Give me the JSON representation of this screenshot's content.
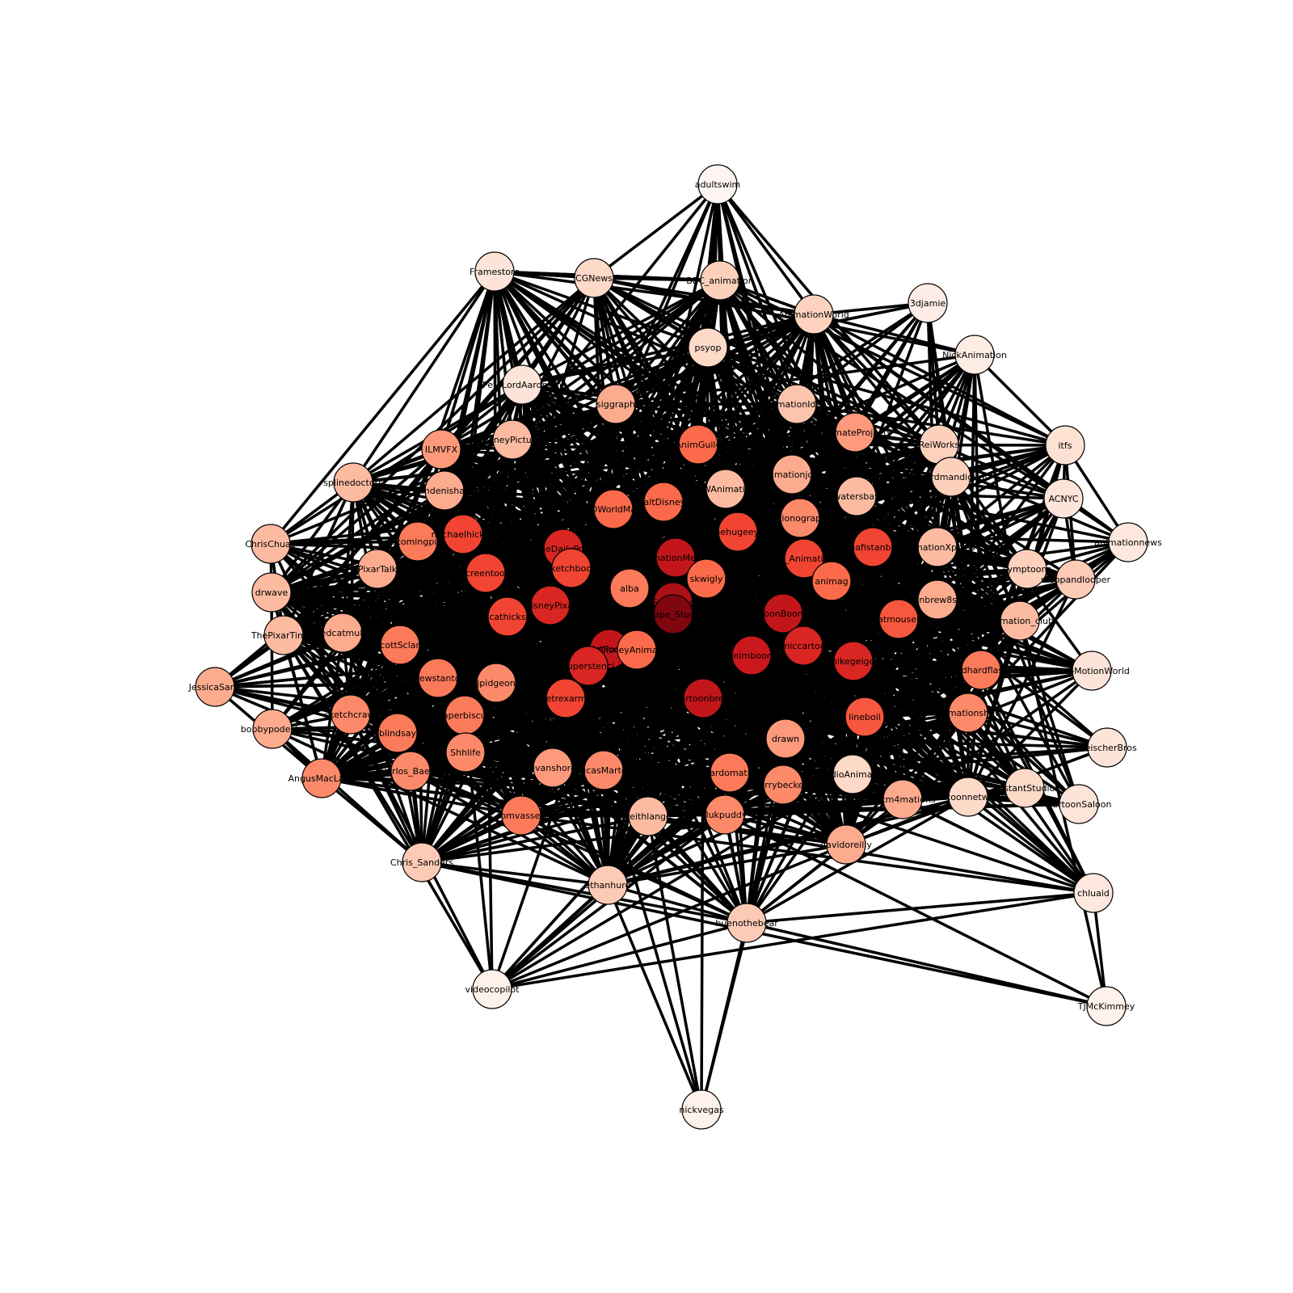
{
  "graph": {
    "directed": false,
    "node_color_scale": [
      "#fff5f0",
      "#fde0d2",
      "#fcbba1",
      "#fc9272",
      "#fb6a4a",
      "#ef3b2c",
      "#cb181d",
      "#a50f15",
      "#67000d"
    ],
    "nodes": [
      {
        "label": "adultswim",
        "shade": 0.0
      },
      {
        "label": "Framestore",
        "shade": 0.1
      },
      {
        "label": "CGNews",
        "shade": 0.15
      },
      {
        "label": "BBC_animation",
        "shade": 0.18
      },
      {
        "label": "AnimationWorld",
        "shade": 0.17
      },
      {
        "label": "3djamie",
        "shade": 0.05
      },
      {
        "label": "NickAnimation",
        "shade": 0.05
      },
      {
        "label": "psyop",
        "shade": 0.15
      },
      {
        "label": "PeteLordAardman",
        "shade": 0.1
      },
      {
        "label": "siggraph",
        "shade": 0.3
      },
      {
        "label": "AnimationIdeas",
        "shade": 0.22
      },
      {
        "label": "UltimateProjects",
        "shade": 0.35
      },
      {
        "label": "ReiWorks",
        "shade": 0.18
      },
      {
        "label": "itfs",
        "shade": 0.12
      },
      {
        "label": "ILMVFX",
        "shade": 0.35
      },
      {
        "label": "DisneyPictures",
        "shade": 0.25
      },
      {
        "label": "AnimGuild",
        "shade": 0.5
      },
      {
        "label": "animationjobs",
        "shade": 0.3
      },
      {
        "label": "weirdmandigital",
        "shade": 0.18
      },
      {
        "label": "ACNYC",
        "shade": 0.1
      },
      {
        "label": "splinedoctors",
        "shade": 0.25
      },
      {
        "label": "andenishan",
        "shade": 0.3
      },
      {
        "label": "DWAnimation",
        "shade": 0.25
      },
      {
        "label": "watersbay",
        "shade": 0.25
      },
      {
        "label": "animationnews",
        "shade": 0.08
      },
      {
        "label": "ChrisChua0",
        "shade": 0.25
      },
      {
        "label": "upcomingpixar",
        "shade": 0.45
      },
      {
        "label": "michaelhickey",
        "shade": 0.6
      },
      {
        "label": "3DWorldMag",
        "shade": 0.5
      },
      {
        "label": "WaltDisneyA",
        "shade": 0.5
      },
      {
        "label": "thehugeeye",
        "shade": 0.6
      },
      {
        "label": "motionographer",
        "shade": 0.4
      },
      {
        "label": "mafistanbul",
        "shade": 0.6
      },
      {
        "label": "AnimationXpress",
        "shade": 0.25
      },
      {
        "label": "PixarTalk",
        "shade": 0.3
      },
      {
        "label": "TheDailyPost",
        "shade": 0.7
      },
      {
        "label": "AnimationMentor",
        "shade": 0.78
      },
      {
        "label": "SF_Animation",
        "shade": 0.6
      },
      {
        "label": "symptoons",
        "shade": 0.18
      },
      {
        "label": "drwave",
        "shade": 0.25
      },
      {
        "label": "screentoon",
        "shade": 0.6
      },
      {
        "label": "sketchbook",
        "shade": 0.6
      },
      {
        "label": "skwigly",
        "shade": 0.5
      },
      {
        "label": "animag",
        "shade": 0.5
      },
      {
        "label": "stoopandlooper",
        "shade": 0.2
      },
      {
        "label": "alba",
        "shade": 0.45
      },
      {
        "label": "Cartoonbrew8stopmo",
        "shade": 0.3
      },
      {
        "label": "ThePixarTimes",
        "shade": 0.25
      },
      {
        "label": "cathicks",
        "shade": 0.6
      },
      {
        "label": "DisneyPixar",
        "shade": 0.7
      },
      {
        "label": "Soukseas",
        "shade": 0.85
      },
      {
        "label": "Escape_Studios",
        "shade": 0.95
      },
      {
        "label": "ToonBoom",
        "shade": 0.78
      },
      {
        "label": "catmousele",
        "shade": 0.55
      },
      {
        "label": "animation_club",
        "shade": 0.25
      },
      {
        "label": "edcatmull",
        "shade": 0.3
      },
      {
        "label": "AnimPodcast",
        "shade": 0.78
      },
      {
        "label": "DisneyAnimation",
        "shade": 0.5
      },
      {
        "label": "comiccartoons",
        "shade": 0.7
      },
      {
        "label": "scottSclark",
        "shade": 0.45
      },
      {
        "label": "animboom",
        "shade": 0.75
      },
      {
        "label": "mikegeiger",
        "shade": 0.7
      },
      {
        "label": "JessicaSanT",
        "shade": 0.3
      },
      {
        "label": "superstenci",
        "shade": 0.7
      },
      {
        "label": "drewstanton",
        "shade": 0.45
      },
      {
        "label": "jpidgeon",
        "shade": 0.4
      },
      {
        "label": "oldhardflash",
        "shade": 0.45
      },
      {
        "label": "StopMotionWorld",
        "shade": 0.1
      },
      {
        "label": "petrexarms",
        "shade": 0.6
      },
      {
        "label": "cartoonbrew",
        "shade": 0.78
      },
      {
        "label": "animationshow",
        "shade": 0.4
      },
      {
        "label": "sketchcrawl",
        "shade": 0.4
      },
      {
        "label": "paperbiscuit",
        "shade": 0.45
      },
      {
        "label": "lineboil",
        "shade": 0.55
      },
      {
        "label": "bobbypodesta",
        "shade": 0.3
      },
      {
        "label": "Shhlife",
        "shade": 0.4
      },
      {
        "label": "blindsay",
        "shade": 0.45
      },
      {
        "label": "drawn",
        "shade": 0.35
      },
      {
        "label": "FleischerBros",
        "shade": 0.1
      },
      {
        "label": "AngusMacLane",
        "shade": 0.4
      },
      {
        "label": "Carlos_Baena",
        "shade": 0.4
      },
      {
        "label": "evanshore",
        "shade": 0.35
      },
      {
        "label": "LucasMartell",
        "shade": 0.4
      },
      {
        "label": "cardomatic",
        "shade": 0.45
      },
      {
        "label": "terrybeckett",
        "shade": 0.4
      },
      {
        "label": "StudioAnimation",
        "shade": 0.15
      },
      {
        "label": "Hatm4mations",
        "shade": 0.3
      },
      {
        "label": "cartoonnetwork",
        "shade": 0.15
      },
      {
        "label": "DistantStudio",
        "shade": 0.15
      },
      {
        "label": "CartoonSaloon",
        "shade": 0.1
      },
      {
        "label": "tomvassey",
        "shade": 0.45
      },
      {
        "label": "keithlango",
        "shade": 0.25
      },
      {
        "label": "flukpuddy",
        "shade": 0.4
      },
      {
        "label": "davidoreilly",
        "shade": 0.3
      },
      {
        "label": "Chris_Sanders",
        "shade": 0.2
      },
      {
        "label": "ethanhurd",
        "shade": 0.2
      },
      {
        "label": "chluaid",
        "shade": 0.08
      },
      {
        "label": "buenothebear",
        "shade": 0.2
      },
      {
        "label": "videocopilot",
        "shade": 0.02
      },
      {
        "label": "TJMcKimmey",
        "shade": 0.02
      },
      {
        "label": "nickvegas",
        "shade": 0.02
      }
    ],
    "sample_edges": [
      [
        0,
        7
      ],
      [
        0,
        4
      ],
      [
        0,
        9
      ],
      [
        0,
        10
      ],
      [
        0,
        22
      ],
      [
        0,
        16
      ],
      [
        1,
        2
      ],
      [
        1,
        8
      ],
      [
        1,
        15
      ],
      [
        1,
        14
      ],
      [
        1,
        9
      ],
      [
        1,
        3
      ],
      [
        2,
        3
      ],
      [
        2,
        9
      ],
      [
        2,
        7
      ],
      [
        2,
        16
      ],
      [
        2,
        22
      ],
      [
        2,
        28
      ],
      [
        3,
        4
      ],
      [
        3,
        10
      ],
      [
        3,
        16
      ],
      [
        3,
        29
      ],
      [
        3,
        30
      ],
      [
        4,
        5
      ],
      [
        4,
        10
      ],
      [
        4,
        11
      ],
      [
        4,
        17
      ],
      [
        4,
        13
      ],
      [
        5,
        12
      ],
      [
        5,
        18
      ],
      [
        5,
        11
      ],
      [
        5,
        23
      ],
      [
        6,
        12
      ],
      [
        6,
        13
      ],
      [
        6,
        18
      ],
      [
        6,
        23
      ],
      [
        6,
        32
      ],
      [
        7,
        9
      ],
      [
        7,
        16
      ],
      [
        7,
        28
      ],
      [
        7,
        29
      ],
      [
        8,
        15
      ],
      [
        8,
        9
      ],
      [
        8,
        26
      ],
      [
        8,
        94
      ],
      [
        9,
        16
      ],
      [
        9,
        28
      ],
      [
        9,
        29
      ],
      [
        9,
        40
      ],
      [
        10,
        17
      ],
      [
        10,
        22
      ],
      [
        10,
        31
      ],
      [
        11,
        17
      ],
      [
        11,
        23
      ],
      [
        11,
        32
      ],
      [
        12,
        18
      ],
      [
        12,
        33
      ],
      [
        13,
        19
      ],
      [
        13,
        24
      ],
      [
        13,
        44
      ],
      [
        13,
        66
      ],
      [
        14,
        20
      ],
      [
        14,
        21
      ],
      [
        14,
        26
      ],
      [
        14,
        27
      ],
      [
        15,
        21
      ],
      [
        15,
        27
      ],
      [
        15,
        35
      ],
      [
        16,
        22
      ],
      [
        16,
        30
      ],
      [
        16,
        36
      ],
      [
        17,
        31
      ],
      [
        17,
        37
      ],
      [
        18,
        33
      ],
      [
        18,
        38
      ],
      [
        19,
        24
      ],
      [
        19,
        38
      ],
      [
        19,
        44
      ],
      [
        19,
        53
      ],
      [
        20,
        25
      ],
      [
        20,
        34
      ],
      [
        20,
        39
      ],
      [
        20,
        47
      ],
      [
        21,
        26
      ],
      [
        21,
        34
      ],
      [
        22,
        30
      ],
      [
        22,
        36
      ],
      [
        23,
        32
      ],
      [
        23,
        33
      ],
      [
        24,
        38
      ],
      [
        24,
        44
      ],
      [
        24,
        66
      ],
      [
        24,
        77
      ],
      [
        25,
        39
      ],
      [
        25,
        47
      ],
      [
        25,
        61
      ],
      [
        25,
        26
      ],
      [
        26,
        34
      ],
      [
        26,
        40
      ],
      [
        27,
        40
      ],
      [
        27,
        41
      ],
      [
        28,
        41
      ],
      [
        28,
        45
      ],
      [
        29,
        36
      ],
      [
        29,
        42
      ],
      [
        30,
        42
      ],
      [
        31,
        37
      ],
      [
        31,
        43
      ],
      [
        32,
        43
      ],
      [
        32,
        52
      ],
      [
        33,
        46
      ],
      [
        34,
        47
      ],
      [
        35,
        41
      ],
      [
        35,
        49
      ],
      [
        36,
        42
      ],
      [
        36,
        50
      ],
      [
        37,
        43
      ],
      [
        37,
        52
      ],
      [
        38,
        44
      ],
      [
        38,
        53
      ],
      [
        39,
        47
      ],
      [
        39,
        61
      ],
      [
        40,
        48
      ],
      [
        41,
        49
      ],
      [
        42,
        50
      ],
      [
        43,
        52
      ],
      [
        44,
        53
      ],
      [
        44,
        66
      ],
      [
        45,
        49
      ],
      [
        45,
        56
      ],
      [
        46,
        53
      ],
      [
        46,
        65
      ],
      [
        47,
        54
      ],
      [
        47,
        61
      ],
      [
        48,
        58
      ],
      [
        49,
        56
      ],
      [
        50,
        51
      ],
      [
        50,
        59
      ],
      [
        51,
        59
      ],
      [
        51,
        68
      ],
      [
        52,
        57
      ],
      [
        52,
        60
      ],
      [
        53,
        60
      ],
      [
        54,
        58
      ],
      [
        54,
        63
      ],
      [
        55,
        59
      ],
      [
        55,
        62
      ],
      [
        56,
        62
      ],
      [
        56,
        67
      ],
      [
        57,
        60
      ],
      [
        58,
        63
      ],
      [
        58,
        64
      ],
      [
        59,
        68
      ],
      [
        60,
        65
      ],
      [
        61,
        73
      ],
      [
        61,
        78
      ],
      [
        62,
        67
      ],
      [
        63,
        69
      ],
      [
        64,
        69
      ],
      [
        65,
        69
      ],
      [
        65,
        76
      ],
      [
        66,
        77
      ],
      [
        66,
        76
      ],
      [
        67,
        71
      ],
      [
        68,
        72
      ],
      [
        69,
        76
      ],
      [
        70,
        74
      ],
      [
        70,
        78
      ],
      [
        71,
        74
      ],
      [
        71,
        79
      ],
      [
        72,
        81
      ],
      [
        72,
        82
      ],
      [
        73,
        78
      ],
      [
        73,
        79
      ],
      [
        74,
        79
      ],
      [
        75,
        80
      ],
      [
        75,
        81
      ],
      [
        76,
        86
      ],
      [
        77,
        88
      ],
      [
        77,
        89
      ],
      [
        78,
        93
      ],
      [
        79,
        93
      ],
      [
        80,
        89
      ],
      [
        80,
        92
      ],
      [
        81,
        89
      ],
      [
        81,
        94
      ],
      [
        82,
        90
      ],
      [
        82,
        94
      ],
      [
        83,
        90
      ],
      [
        83,
        91
      ],
      [
        84,
        91
      ],
      [
        84,
        92
      ],
      [
        85,
        86
      ],
      [
        85,
        92
      ],
      [
        86,
        87
      ],
      [
        86,
        88
      ],
      [
        87,
        88
      ],
      [
        87,
        95
      ],
      [
        88,
        95
      ],
      [
        89,
        90
      ],
      [
        90,
        96
      ],
      [
        90,
        97
      ],
      [
        91,
        94
      ],
      [
        91,
        98
      ],
      [
        92,
        98
      ],
      [
        92,
        99
      ],
      [
        93,
        97
      ],
      [
        93,
        98
      ],
      [
        94,
        97
      ],
      [
        94,
        99
      ],
      [
        95,
        98
      ],
      [
        96,
        99
      ],
      [
        96,
        97
      ],
      [
        97,
        99
      ],
      [
        96,
        98
      ],
      [
        98,
        95
      ],
      [
        83,
        85
      ],
      [
        85,
        95
      ],
      [
        88,
        95
      ],
      [
        83,
        96
      ],
      [
        91,
        96
      ],
      [
        84,
        95
      ]
    ]
  }
}
